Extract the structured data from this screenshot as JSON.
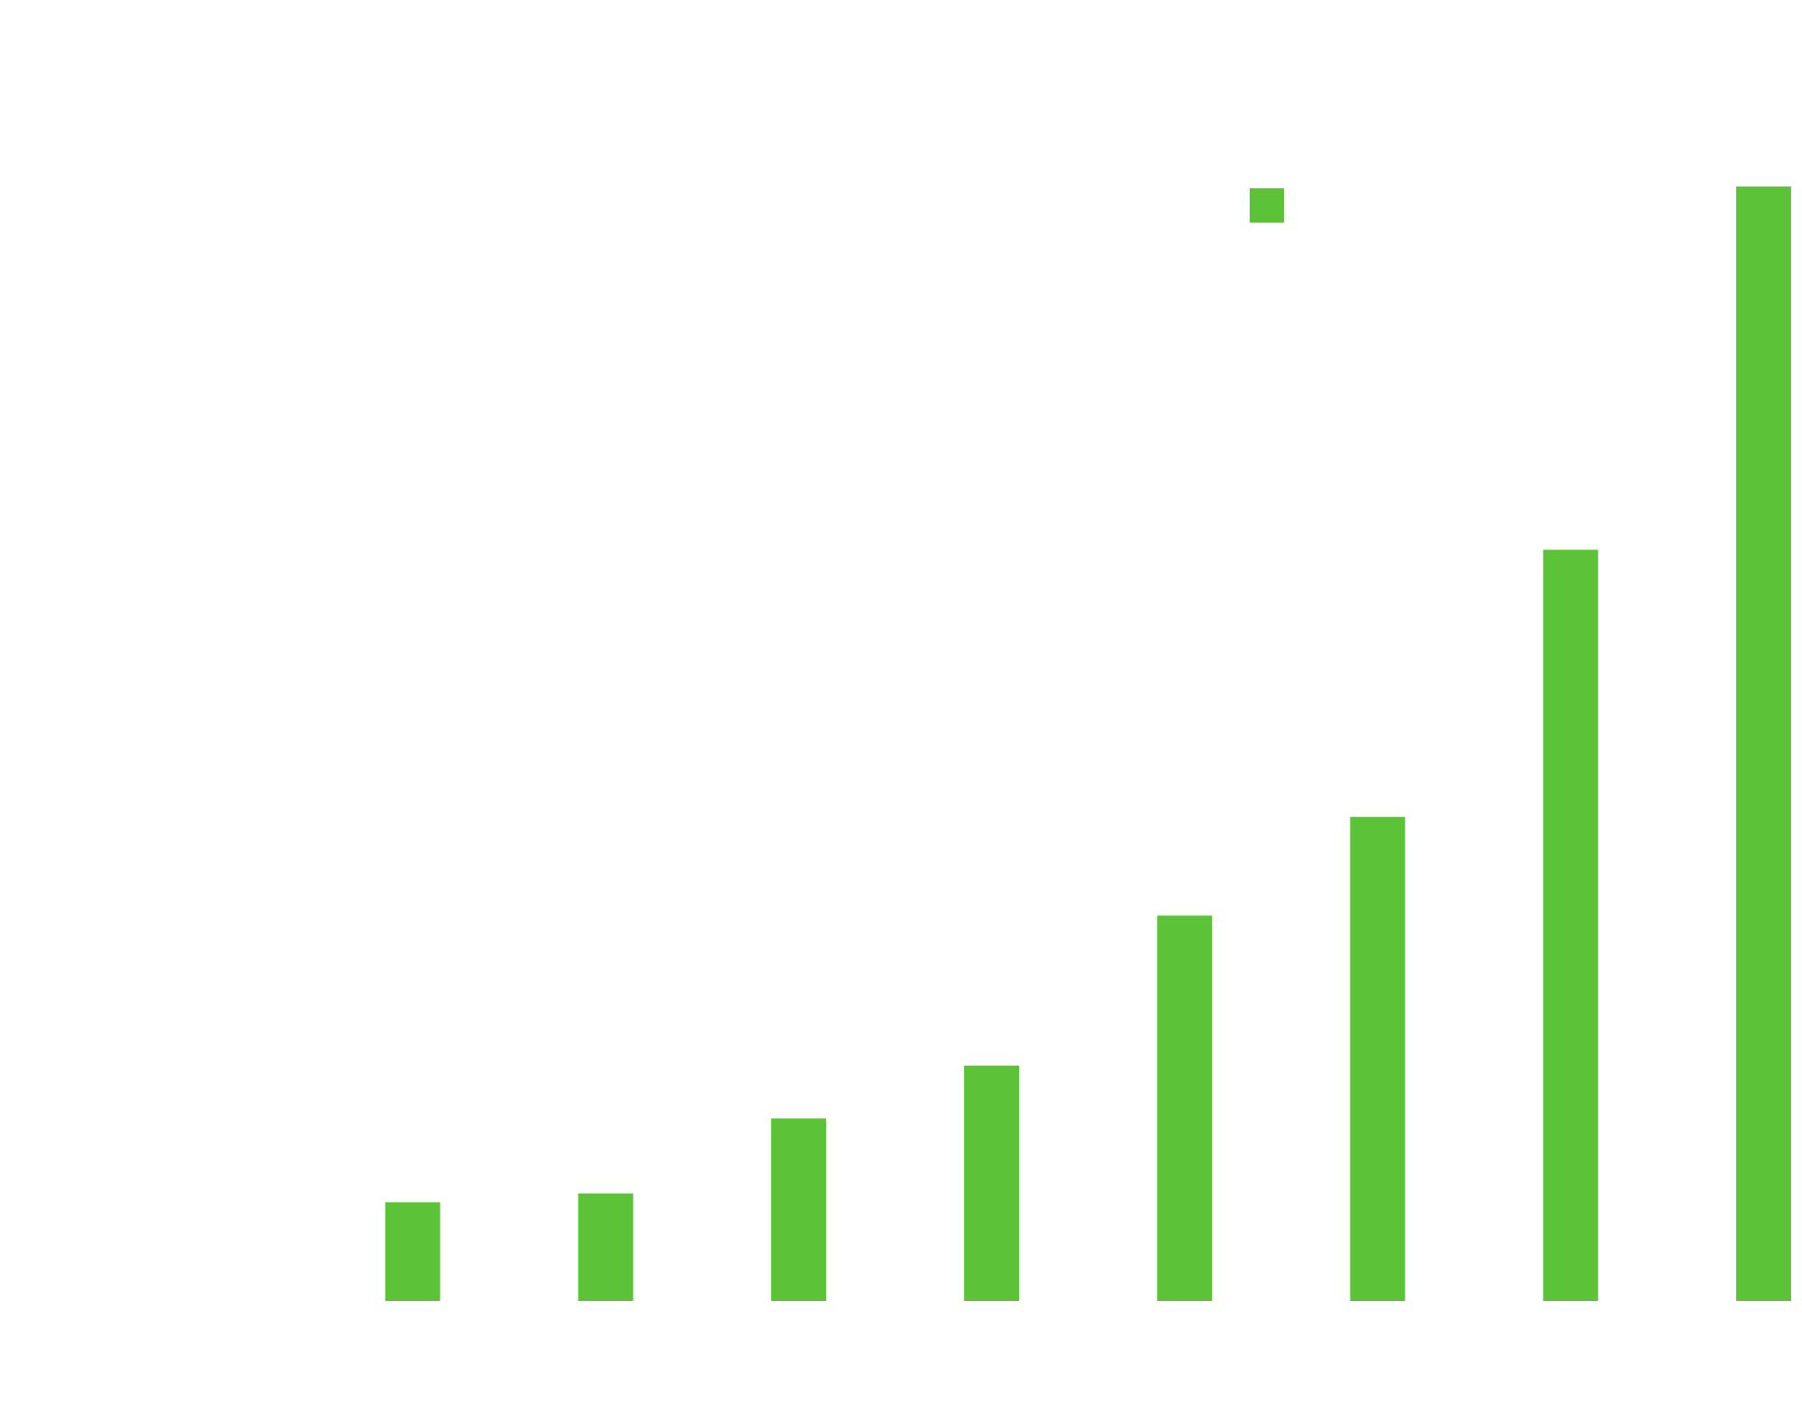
{
  "chart_data": {
    "type": "bar",
    "categories": [
      "",
      "",
      "",
      "",
      "",
      "",
      "",
      ""
    ],
    "values": [
      112,
      122,
      207,
      267,
      437,
      549,
      852,
      1264
    ],
    "color": "#5cc339",
    "legend": {
      "placement": "top-center",
      "entries": [
        {
          "name": "",
          "color": "#5cc339"
        }
      ]
    },
    "ylim": [
      0,
      1264
    ],
    "grid": false,
    "title": "",
    "xlabel": "",
    "ylabel": ""
  }
}
